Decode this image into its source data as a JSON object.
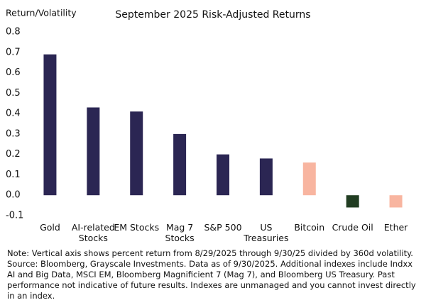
{
  "chart_data": {
    "type": "bar",
    "title": "September 2025 Risk-Adjusted Returns",
    "y_label": "Return/Volatility",
    "categories": [
      "Gold",
      "AI-related Stocks",
      "EM Stocks",
      "Mag 7 Stocks",
      "S&P 500",
      "US Treasuries",
      "Bitcoin",
      "Crude Oil",
      "Ether"
    ],
    "values": [
      0.69,
      0.43,
      0.41,
      0.3,
      0.2,
      0.18,
      0.16,
      -0.06,
      -0.06
    ],
    "colors": [
      "#2b2653",
      "#2b2653",
      "#2b2653",
      "#2b2653",
      "#2b2653",
      "#2b2653",
      "#f8b5a0",
      "#213d22",
      "#f8b5a0"
    ],
    "ylim": [
      -0.1,
      0.8
    ],
    "yticks": [
      0.8,
      0.7,
      0.6,
      0.5,
      0.4,
      0.3,
      0.2,
      0.1,
      {
        "value": 0,
        "label": "0.0"
      },
      -0.1
    ],
    "grid": false
  },
  "note": "Note: Vertical axis shows percent return from 8/29/2025 through 9/30/25 divided by 360d volatility. Source: Bloomberg, Grayscale Investments. Data as of 9/30/2025. Additional indexes include Indxx AI and Big Data, MSCI EM, Bloomberg Magnificient 7 (Mag 7), and Bloomberg US Treasury. Past performance not indicative of future results. Indexes are unmanaged and you cannot invest directly in an index."
}
